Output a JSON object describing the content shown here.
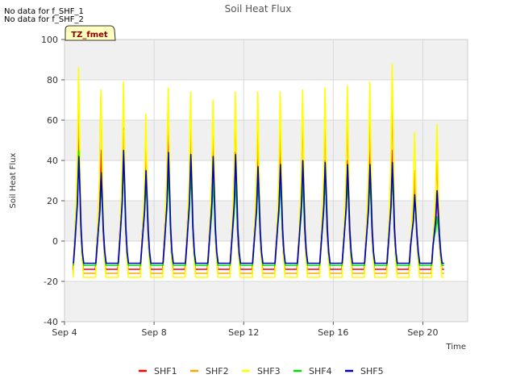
{
  "notes": [
    "No data for f_SHF_1",
    "No data for f_SHF_2"
  ],
  "tz_badge": "TZ_fmet",
  "colors": {
    "plot_bg": "#ffffff",
    "band": "#f0f0f0",
    "grid": "#d9d9d9",
    "badge_bg": "#ffffc0",
    "badge_text": "#8b0000"
  },
  "chart_data": {
    "type": "line",
    "title": "Soil Heat Flux",
    "xlabel": "Time",
    "ylabel": "Soil Heat Flux",
    "ylim": [
      -40,
      100
    ],
    "xlim": [
      0,
      18
    ],
    "yticks": [
      -40,
      -20,
      0,
      20,
      40,
      60,
      80,
      100
    ],
    "xticks": [
      {
        "value": 0,
        "label": "Sep 4"
      },
      {
        "value": 4,
        "label": "Sep 8"
      },
      {
        "value": 8,
        "label": "Sep 12"
      },
      {
        "value": 12,
        "label": "Sep 16"
      },
      {
        "value": 16,
        "label": "Sep 20"
      }
    ],
    "grid": true,
    "legend_position": "bottom",
    "x_units": "days since Sep 4 00:00",
    "day_starts": [
      0,
      1,
      2,
      3,
      4,
      5,
      6,
      7,
      8,
      9,
      10,
      11,
      12,
      13,
      14,
      15,
      16
    ],
    "series": [
      {
        "name": "SHF1",
        "color": "#ff0000",
        "night": -14,
        "peaks": [
          56,
          45,
          56,
          45,
          56,
          55,
          50,
          44,
          45,
          45,
          40,
          40,
          40,
          45,
          45,
          30,
          25
        ]
      },
      {
        "name": "SHF2",
        "color": "#ffa500",
        "night": -16,
        "peaks": [
          68,
          72,
          55,
          50,
          70,
          60,
          62,
          66,
          55,
          58,
          64,
          60,
          60,
          60,
          70,
          35,
          40
        ]
      },
      {
        "name": "SHF3",
        "color": "#ffff00",
        "night": -18,
        "peaks": [
          86,
          75,
          79,
          63,
          76,
          74,
          70,
          74,
          74,
          74,
          75,
          76,
          77,
          79,
          88,
          54,
          58
        ]
      },
      {
        "name": "SHF4",
        "color": "#00dd00",
        "night": -12,
        "peaks": [
          45,
          30,
          40,
          30,
          35,
          35,
          30,
          30,
          30,
          30,
          30,
          32,
          32,
          32,
          35,
          22,
          12
        ]
      },
      {
        "name": "SHF5",
        "color": "#0000cc",
        "night": -11,
        "peaks": [
          42,
          34,
          45,
          35,
          44,
          43,
          42,
          43,
          37,
          38,
          40,
          39,
          38,
          38,
          39,
          23,
          25
        ]
      }
    ]
  }
}
